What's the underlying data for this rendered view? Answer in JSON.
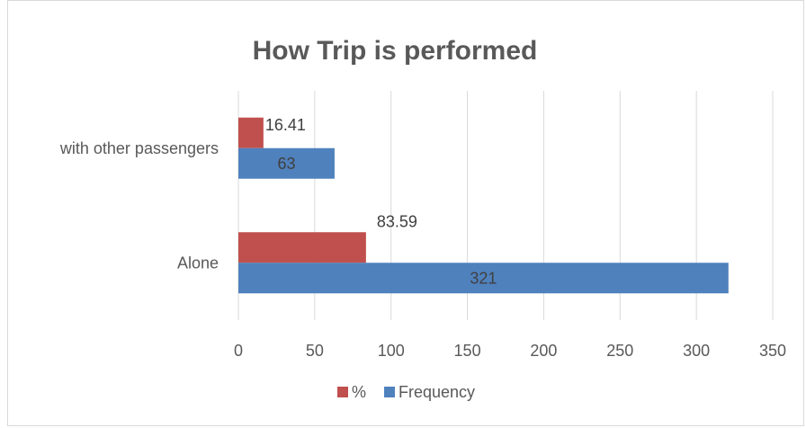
{
  "chart_data": {
    "type": "bar",
    "orientation": "horizontal",
    "title": "How Trip is performed",
    "categories": [
      "with other passengers",
      "Alone"
    ],
    "series": [
      {
        "name": "%",
        "values": [
          16.41,
          83.59
        ],
        "color": "#c0504d"
      },
      {
        "name": "Frequency",
        "values": [
          63,
          321
        ],
        "color": "#4f81bd"
      }
    ],
    "xlim": [
      0,
      350
    ],
    "x_ticks": [
      0,
      50,
      100,
      150,
      200,
      250,
      300,
      350
    ],
    "grid": true,
    "legend": "bottom"
  }
}
